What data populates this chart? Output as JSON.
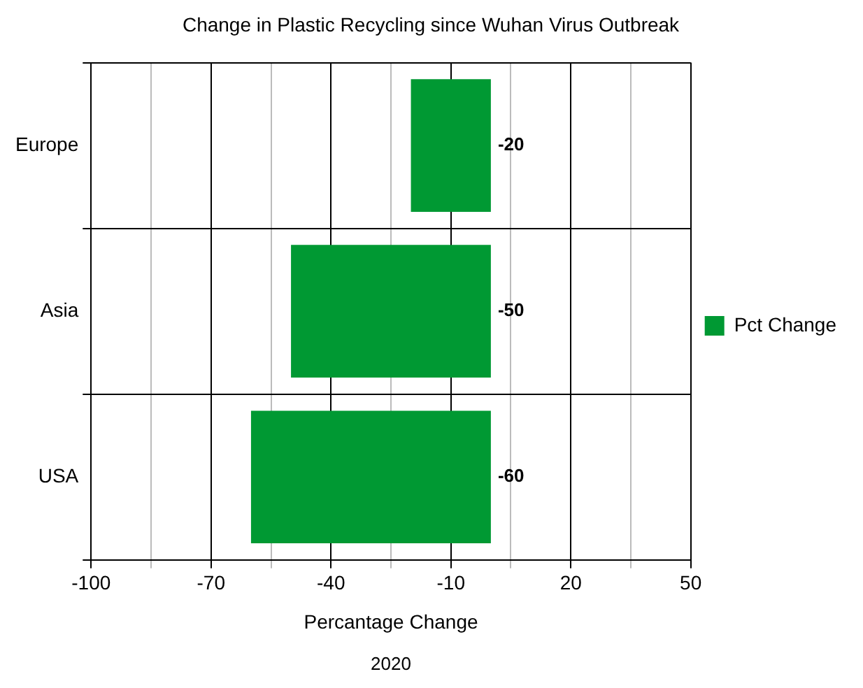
{
  "chart_data": {
    "type": "bar",
    "orientation": "horizontal",
    "title": "Change in Plastic Recycling since Wuhan Virus Outbreak",
    "xlabel": "Percantage Change",
    "categories": [
      "Europe",
      "Asia",
      "USA"
    ],
    "series": [
      {
        "name": "Pct Change",
        "color": "#009933",
        "values": [
          -20,
          -50,
          -60
        ]
      }
    ],
    "xlim": [
      -100,
      50
    ],
    "xticks": [
      -100,
      {
        "value": -85,
        "label": null
      },
      -70,
      {
        "value": -55,
        "label": null
      },
      -40,
      {
        "value": -25,
        "label": null
      },
      -10,
      {
        "value": 5,
        "label": null
      },
      20,
      {
        "value": 35,
        "label": null
      },
      50
    ],
    "grid": true,
    "legend": "right",
    "data_labels": true,
    "annotations": [
      "2020"
    ]
  }
}
